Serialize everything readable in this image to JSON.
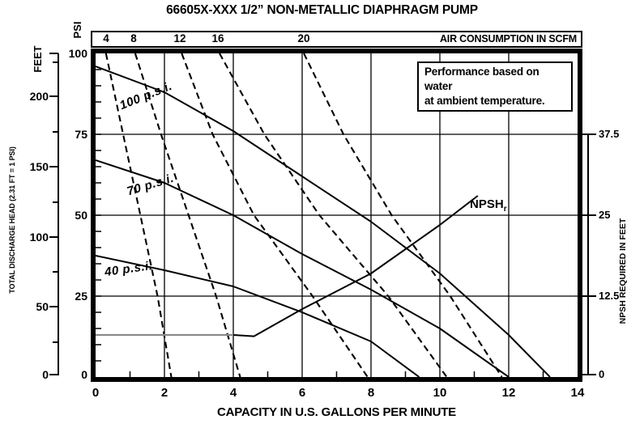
{
  "title": "66605X-XXX  1/2” NON-METALLIC DIAPHRAGM PUMP",
  "top_axis": {
    "label": "AIR CONSUMPTION IN SCFM",
    "ticks": [
      "4",
      "8",
      "12",
      "16",
      "20"
    ]
  },
  "left_axis": {
    "psi_word": "PSI",
    "feet_word": "FEET",
    "rotated_label": "TOTAL DISCHARGE HEAD (2.31 FT = 1 PSI)",
    "psi_ticks": [
      "100",
      "75",
      "50",
      "25",
      "0"
    ],
    "feet_ticks": [
      "200",
      "150",
      "100",
      "50",
      "0"
    ]
  },
  "right_axis": {
    "label": "NPSH REQUIRED IN FEET",
    "ticks": [
      "37.5",
      "25",
      "12.5",
      "0"
    ]
  },
  "bottom_axis": {
    "label": "CAPACITY IN U.S. GALLONS PER MINUTE",
    "ticks": [
      "0",
      "2",
      "4",
      "6",
      "8",
      "10",
      "12",
      "14"
    ]
  },
  "note": {
    "line1": "Performance based on water",
    "line2": "at ambient temperature."
  },
  "curve_labels": {
    "c100": "100 p.s.i.",
    "c70": "70 p.s.i.",
    "c40": "40 p.s.i.",
    "npsh": "NPSH",
    "npsh_sub": "r"
  },
  "colors": {
    "ink": "#000000",
    "npsh_flat_gray": "#8a8a8a"
  },
  "chart_data": {
    "type": "line",
    "title": "66605X-XXX 1/2” NON-METALLIC DIAPHRAGM PUMP",
    "xlabel": "CAPACITY IN U.S. GALLONS PER MINUTE",
    "ylabel_left": "TOTAL DISCHARGE HEAD (2.31 FT = 1 PSI), scales in PSI and FEET",
    "ylabel_right": "NPSH REQUIRED IN FEET",
    "top_axis_label": "AIR CONSUMPTION IN SCFM",
    "xlim": [
      0,
      14
    ],
    "ylim_psi": [
      0,
      100
    ],
    "psi_tick_values": [
      0,
      25,
      50,
      75,
      100
    ],
    "feet_tick_values": [
      0,
      50,
      100,
      150,
      200
    ],
    "npsh_tick_values": [
      0,
      12.5,
      25,
      37.5
    ],
    "npsh_ft_per_psi": 0.5,
    "grid": true,
    "x_gridlines_gpm": [
      2,
      4,
      6,
      8,
      10,
      12
    ],
    "psi_gridlines": [
      25,
      50,
      75
    ],
    "annotation": "Performance based on water at ambient temperature.",
    "pressure_curves": [
      {
        "label": "100 p.s.i.",
        "style": "solid",
        "gpm": [
          0,
          2,
          4,
          6,
          8,
          10,
          12,
          13.2
        ],
        "psi": [
          96,
          88,
          76,
          62,
          48,
          32,
          13,
          0
        ]
      },
      {
        "label": "70 p.s.i.",
        "style": "solid",
        "gpm": [
          0,
          2,
          4,
          6,
          8,
          10,
          12
        ],
        "psi": [
          67,
          60,
          50,
          38,
          27,
          15,
          0
        ]
      },
      {
        "label": "40 p.s.i.",
        "style": "solid",
        "gpm": [
          0,
          2,
          4,
          6,
          8,
          9.4
        ],
        "psi": [
          37.5,
          33,
          28,
          20,
          11,
          0
        ]
      }
    ],
    "air_consumption_curves": {
      "style": "dashed",
      "psi_levels": [
        100,
        75,
        50,
        25,
        0
      ],
      "curves": [
        {
          "label": "4 SCFM",
          "gpm": [
            0.3,
            0.8,
            1.3,
            1.8,
            2.2
          ]
        },
        {
          "label": "8 SCFM",
          "gpm": [
            1.15,
            1.9,
            2.7,
            3.5,
            4.2
          ]
        },
        {
          "label": "12 SCFM",
          "gpm": [
            2.5,
            3.4,
            4.6,
            6.3,
            7.9
          ]
        },
        {
          "label": "16 SCFM",
          "gpm": [
            3.6,
            4.9,
            6.5,
            8.5,
            10.2
          ]
        },
        {
          "label": "20 SCFM",
          "gpm": [
            6.05,
            7.2,
            8.6,
            10.3,
            11.8
          ]
        }
      ]
    },
    "npsh_curve": {
      "label": "NPSHr",
      "axis": "right",
      "style": "solid",
      "gray_flat_until_gpm": 4,
      "gpm": [
        0,
        4,
        4.6,
        6,
        8,
        10,
        11.1
      ],
      "npsh_ft": [
        6.5,
        6.5,
        6.3,
        10.5,
        16,
        23.5,
        28
      ]
    }
  }
}
